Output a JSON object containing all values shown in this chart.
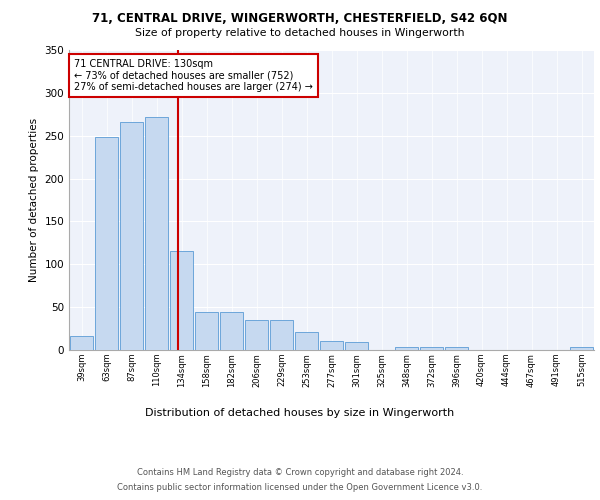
{
  "title1": "71, CENTRAL DRIVE, WINGERWORTH, CHESTERFIELD, S42 6QN",
  "title2": "Size of property relative to detached houses in Wingerworth",
  "xlabel": "Distribution of detached houses by size in Wingerworth",
  "ylabel": "Number of detached properties",
  "footer1": "Contains HM Land Registry data © Crown copyright and database right 2024.",
  "footer2": "Contains public sector information licensed under the Open Government Licence v3.0.",
  "bin_labels": [
    "39sqm",
    "63sqm",
    "87sqm",
    "110sqm",
    "134sqm",
    "158sqm",
    "182sqm",
    "206sqm",
    "229sqm",
    "253sqm",
    "277sqm",
    "301sqm",
    "325sqm",
    "348sqm",
    "372sqm",
    "396sqm",
    "420sqm",
    "444sqm",
    "467sqm",
    "491sqm",
    "515sqm"
  ],
  "bar_values": [
    16,
    249,
    266,
    272,
    115,
    44,
    44,
    35,
    35,
    21,
    10,
    9,
    0,
    4,
    4,
    3,
    0,
    0,
    0,
    0,
    3
  ],
  "bar_color": "#c6d9f0",
  "bar_edge_color": "#5b9bd5",
  "vline_x": 3.85,
  "vline_color": "#cc0000",
  "annotation_text": "71 CENTRAL DRIVE: 130sqm\n← 73% of detached houses are smaller (752)\n27% of semi-detached houses are larger (274) →",
  "annotation_box_color": "white",
  "annotation_box_edge": "#cc0000",
  "ylim": [
    0,
    350
  ],
  "yticks": [
    0,
    50,
    100,
    150,
    200,
    250,
    300,
    350
  ],
  "bg_color": "#eef2fa"
}
